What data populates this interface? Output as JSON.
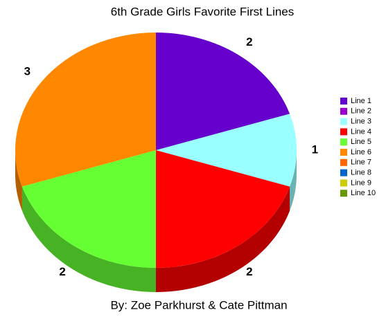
{
  "chart_data": {
    "type": "pie3d",
    "title": "6th Grade Girls Favorite First Lines",
    "caption": "By: Zoe Parkhurst & Cate Pittman",
    "categories": [
      "Line 1",
      "Line 2",
      "Line 3",
      "Line 4",
      "Line 5",
      "Line 6",
      "Line 7",
      "Line 8",
      "Line 9",
      "Line 10"
    ],
    "values": [
      2,
      0,
      1,
      2,
      2,
      3,
      0,
      0,
      0,
      0
    ],
    "colors": [
      "#6600cc",
      "#9900cc",
      "#99ffff",
      "#ff0000",
      "#66ff33",
      "#ff8800",
      "#ff6600",
      "#0066cc",
      "#cccc00",
      "#669900"
    ],
    "legend": "right"
  }
}
